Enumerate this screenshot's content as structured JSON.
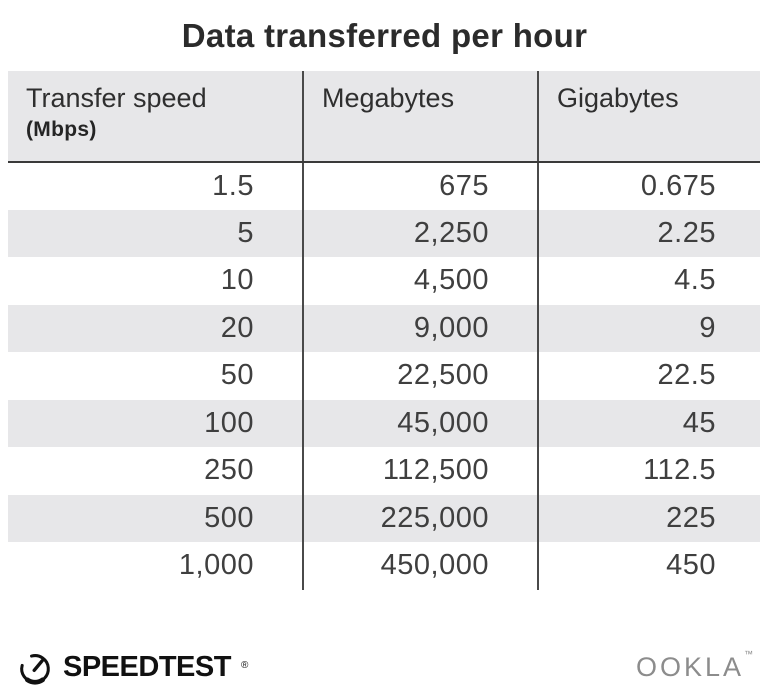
{
  "title": "Data transferred per hour",
  "table": {
    "columns": [
      {
        "label": "Transfer speed",
        "sublabel": "(Mbps)"
      },
      {
        "label": "Megabytes"
      },
      {
        "label": "Gigabytes"
      }
    ],
    "rows": [
      [
        "1.5",
        "675",
        "0.675"
      ],
      [
        "5",
        "2,250",
        "2.25"
      ],
      [
        "10",
        "4,500",
        "4.5"
      ],
      [
        "20",
        "9,000",
        "9"
      ],
      [
        "50",
        "22,500",
        "22.5"
      ],
      [
        "100",
        "45,000",
        "45"
      ],
      [
        "250",
        "112,500",
        "112.5"
      ],
      [
        "500",
        "225,000",
        "225"
      ],
      [
        "1,000",
        "450,000",
        "450"
      ]
    ]
  },
  "footer": {
    "brand": "SPEEDTEST",
    "brand_mark": "®",
    "company": "OOKLA",
    "company_mark": "™"
  },
  "colors": {
    "header_bg": "#e7e7e9",
    "alt_row_bg": "#e7e7e9",
    "divider": "#4a4a4a",
    "title_text": "#2b2b2b",
    "body_text": "#3f3f3f",
    "brand_black": "#111111",
    "ookla_gray": "#8c8c8c"
  },
  "chart_data": {
    "type": "table",
    "title": "Data transferred per hour",
    "columns": [
      "Transfer speed (Mbps)",
      "Megabytes",
      "Gigabytes"
    ],
    "rows": [
      [
        1.5,
        675,
        0.675
      ],
      [
        5,
        2250,
        2.25
      ],
      [
        10,
        4500,
        4.5
      ],
      [
        20,
        9000,
        9
      ],
      [
        50,
        22500,
        22.5
      ],
      [
        100,
        45000,
        45
      ],
      [
        250,
        112500,
        112.5
      ],
      [
        500,
        225000,
        225
      ],
      [
        1000,
        450000,
        450
      ]
    ]
  }
}
